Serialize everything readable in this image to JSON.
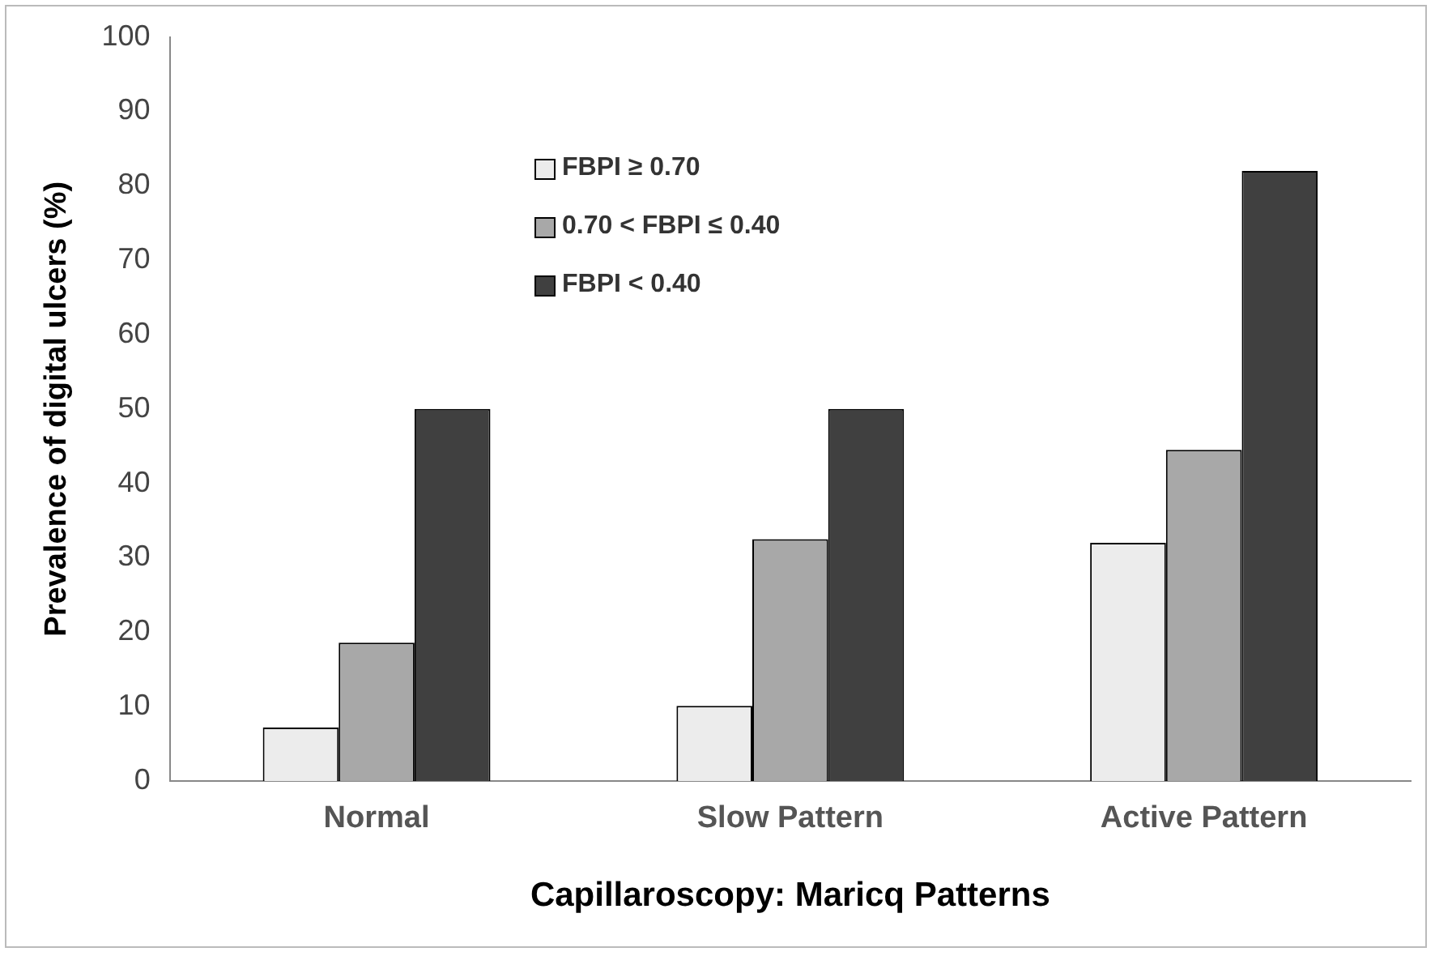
{
  "chart_data": {
    "type": "bar",
    "xlabel": "Capillaroscopy: Maricq Patterns",
    "ylabel": "Prevalence of digital ulcers (%)",
    "categories": [
      "Normal",
      "Slow Pattern",
      "Active Pattern"
    ],
    "series": [
      {
        "name": "FBPI ≥ 0.70",
        "color": "#ececec",
        "values": [
          7.2,
          10.1,
          32
        ]
      },
      {
        "name": "0.70 < FBPI ≤ 0.40",
        "color": "#a8a8a8",
        "values": [
          18.6,
          32.5,
          44.5
        ]
      },
      {
        "name": "FBPI < 0.40",
        "color": "#404040",
        "values": [
          50,
          50,
          82
        ]
      }
    ],
    "ylim": [
      0,
      100
    ],
    "yticks": [
      0,
      10,
      20,
      30,
      40,
      50,
      60,
      70,
      80,
      90,
      100
    ],
    "grid": false,
    "legend": "top left"
  }
}
